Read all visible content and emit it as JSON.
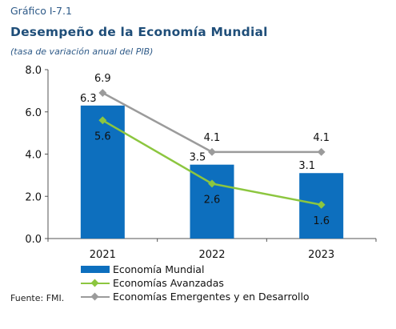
{
  "header": {
    "label": "Gráfico I-7.1",
    "title": "Desempeño de la Economía Mundial",
    "subtitle": "(tasa de variación anual del PIB)"
  },
  "source": "Fuente: FMI.",
  "colors": {
    "bar": "#0d6fbe",
    "advanced": "#8cc63f",
    "emerging": "#9b9b9b",
    "axis": "#555555"
  },
  "chart_data": {
    "type": "bar",
    "categories": [
      "2021",
      "2022",
      "2023"
    ],
    "ylim": [
      0,
      8
    ],
    "yticks": [
      "0.0",
      "2.0",
      "4.0",
      "6.0",
      "8.0"
    ],
    "grid": false,
    "legend_position": "bottom",
    "series": [
      {
        "name": "Economía Mundial",
        "type": "bar",
        "values": [
          6.3,
          3.5,
          3.1
        ],
        "labels": [
          "6.3",
          "3.5",
          "3.1"
        ]
      },
      {
        "name": "Economías Avanzadas",
        "type": "line",
        "values": [
          5.6,
          2.6,
          1.6
        ],
        "labels": [
          "5.6",
          "2.6",
          "1.6"
        ]
      },
      {
        "name": "Economías Emergentes y en Desarrollo",
        "type": "line",
        "values": [
          6.9,
          4.1,
          4.1
        ],
        "labels": [
          "6.9",
          "4.1",
          "4.1"
        ]
      }
    ]
  }
}
